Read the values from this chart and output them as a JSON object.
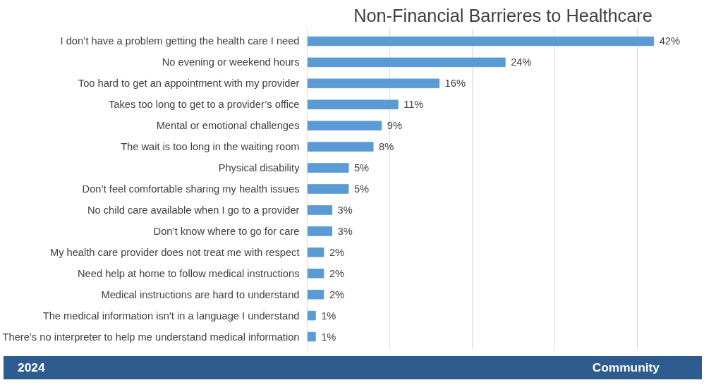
{
  "chart_data": {
    "type": "bar",
    "orientation": "horizontal",
    "title": "Non-Financial Barrieres to Healthcare",
    "categories": [
      "I don’t have a problem getting the health care I need",
      "No evening or weekend hours",
      "Too hard to get an appointment with my provider",
      "Takes too long to get to a provider’s office",
      "Mental or emotional challenges",
      "The wait is too long in the waiting room",
      "Physical disability",
      "Don’t feel comfortable sharing my health issues",
      "No child care available when I go to a provider",
      "Don’t know where to go for care",
      "My health care provider does not treat me with respect",
      "Need help at home to follow medical instructions",
      "Medical instructions are hard to understand",
      "The medical information isn't in a language I understand",
      "There’s no interpreter to help me understand medical information"
    ],
    "values": [
      42,
      24,
      16,
      11,
      9,
      8,
      5,
      5,
      3,
      3,
      2,
      2,
      2,
      1,
      1
    ],
    "value_labels": [
      "42%",
      "24%",
      "16%",
      "11%",
      "9%",
      "8%",
      "5%",
      "5%",
      "3%",
      "3%",
      "2%",
      "2%",
      "2%",
      "1%",
      "1%"
    ],
    "color": "#5b9bd5",
    "grid": "x",
    "tick_labels": "y",
    "annotations": [
      "2024",
      "Community"
    ]
  }
}
